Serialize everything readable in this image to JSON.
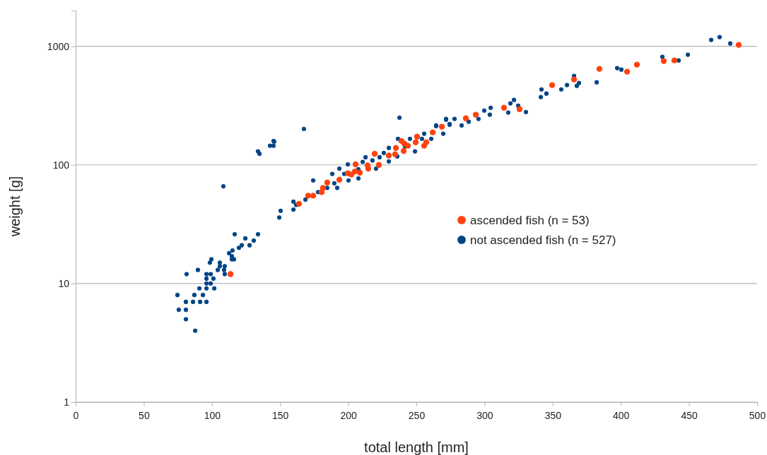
{
  "chart_data": {
    "type": "scatter",
    "xlabel": "total length [mm]",
    "ylabel": "weight [g]",
    "xlim": [
      0,
      500
    ],
    "xticks": [
      0,
      50,
      100,
      150,
      200,
      250,
      300,
      350,
      400,
      450,
      500
    ],
    "ylim": [
      1,
      2000
    ],
    "yticks": [
      1,
      10,
      100,
      1000
    ],
    "log": "y",
    "grid": "y",
    "legend": "right",
    "marker": "circle",
    "series": [
      {
        "name": "ascended fish (n = 53)",
        "color": "#ff420e",
        "x": [
          113.6,
          163.9,
          170.6,
          174.3,
          181.5,
          180.5,
          184.6,
          193.5,
          199.7,
          202.3,
          204.9,
          205.4,
          208.5,
          214.7,
          214.2,
          219.4,
          222.5,
          229.8,
          235,
          234.4,
          239.1,
          241.2,
          243.8,
          240.7,
          249.5,
          250.5,
          255.7,
          257.3,
          262,
          268.7,
          286.3,
          293.6,
          314.3,
          325.7,
          349.6,
          365.7,
          384.3,
          404.6,
          411.8,
          431.5,
          439.3,
          486.5
        ],
        "values": [
          12,
          47,
          55,
          55,
          64,
          59,
          71,
          75,
          85,
          83,
          88,
          101,
          86,
          93,
          99,
          124,
          100,
          120,
          139,
          123,
          159,
          151,
          145,
          131,
          155,
          173,
          145,
          155,
          188,
          210,
          247,
          265,
          303,
          295,
          471,
          525,
          645,
          611,
          700,
          750,
          760,
          1028
        ]
      },
      {
        "name": "not ascended fish (n = 527)",
        "color": "#004586",
        "x": [
          81.4,
          89.7,
          96,
          96,
          96,
          96,
          99.1,
          101.1,
          99.1,
          101.7,
          90.8,
          93.4,
          87.1,
          74.7,
          80.9,
          86.1,
          91.3,
          96,
          75.7,
          80.9,
          80.9,
          87.7,
          99.6,
          98.5,
          105.8,
          105.8,
          104.3,
          109.4,
          108.9,
          109.4,
          112.6,
          115.1,
          114.6,
          116.2,
          114.6,
          116.7,
          119.8,
          121.9,
          124.5,
          127.6,
          130.7,
          133.8,
          108.4,
          133.8,
          134.9,
          142.6,
          145.7,
          145.2,
          145.2,
          167.5,
          237.6,
          149.4,
          150.4,
          159.8,
          159.8,
          161.8,
          168.6,
          174.3,
          177.9,
          184.6,
          188.3,
          189.8,
          191.9,
          193.5,
          197.1,
          200.2,
          199.7,
          207.5,
          207.5,
          210.6,
          212.7,
          217.8,
          220.4,
          223,
          226.1,
          229.8,
          229.8,
          236,
          236.5,
          241.7,
          245.3,
          249,
          254.1,
          255.7,
          260.9,
          264.5,
          269.7,
          271.8,
          274.4,
          264.5,
          271.8,
          274.4,
          278,
          283.2,
          288.4,
          295.6,
          299.8,
          304.5,
          303.9,
          317.4,
          319,
          321.6,
          324.7,
          330.4,
          341.3,
          341.8,
          345.4,
          356.3,
          360.5,
          365.7,
          367.7,
          369.3,
          382.3,
          397.3,
          400.4,
          430.5,
          442.4,
          449.2,
          466.3,
          472.5,
          480.3
        ],
        "values": [
          12,
          13,
          12,
          11,
          10,
          9.1,
          12,
          11,
          10,
          9.1,
          9.1,
          8,
          8,
          8,
          7,
          7,
          7,
          7,
          6,
          6,
          5,
          4,
          16,
          15,
          15,
          14,
          13,
          14,
          13,
          12,
          18,
          19,
          16,
          16,
          17,
          26,
          20,
          21,
          24,
          21,
          23,
          26,
          66,
          130,
          124,
          145,
          157,
          159,
          145,
          201,
          250,
          36,
          41,
          49,
          42,
          46,
          51,
          74,
          59,
          64,
          84,
          70,
          64,
          93,
          84,
          74,
          101,
          92,
          77,
          106,
          116,
          109,
          93,
          116,
          126,
          107,
          139,
          118,
          166,
          143,
          166,
          130,
          166,
          183,
          166,
          212,
          183,
          240,
          221,
          215,
          244,
          218,
          244,
          215,
          231,
          244,
          287,
          303,
          265,
          276,
          330,
          353,
          316,
          279,
          373,
          433,
          399,
          433,
          471,
          562,
          464,
          490,
          497,
          654,
          636,
          814,
          760,
          849,
          1132,
          1195,
          1056
        ]
      }
    ]
  }
}
